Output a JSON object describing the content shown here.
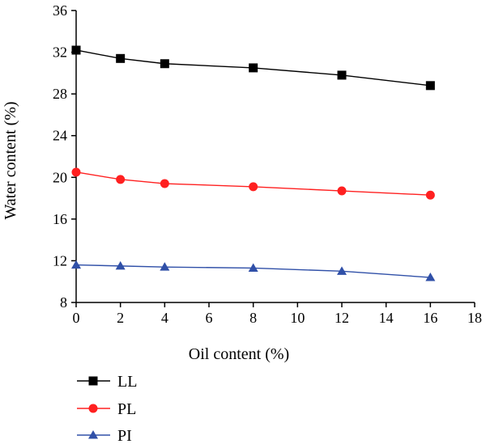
{
  "chart_data": {
    "type": "line",
    "xlabel": "Oil content (%)",
    "ylabel": "Water content (%)",
    "xlim": [
      0,
      18
    ],
    "ylim": [
      8,
      36
    ],
    "xticks": [
      "0",
      "2",
      "4",
      "6",
      "8",
      "10",
      "12",
      "14",
      "16",
      "18"
    ],
    "yticks": [
      "8",
      "12",
      "16",
      "20",
      "24",
      "28",
      "32",
      "36"
    ],
    "grid": false,
    "legend": "bottom-left",
    "x": [
      0,
      2,
      4,
      8,
      12,
      16
    ],
    "series": [
      {
        "name": "LL",
        "color": "#000000",
        "marker": "square",
        "values": [
          32.2,
          31.4,
          30.9,
          30.5,
          29.8,
          28.8
        ]
      },
      {
        "name": "PL",
        "color": "#ff2020",
        "marker": "circle",
        "values": [
          20.5,
          19.8,
          19.4,
          19.1,
          18.7,
          18.3
        ]
      },
      {
        "name": "PI",
        "color": "#3050a8",
        "marker": "triangle",
        "values": [
          11.6,
          11.5,
          11.4,
          11.3,
          11.0,
          10.4
        ]
      }
    ]
  }
}
